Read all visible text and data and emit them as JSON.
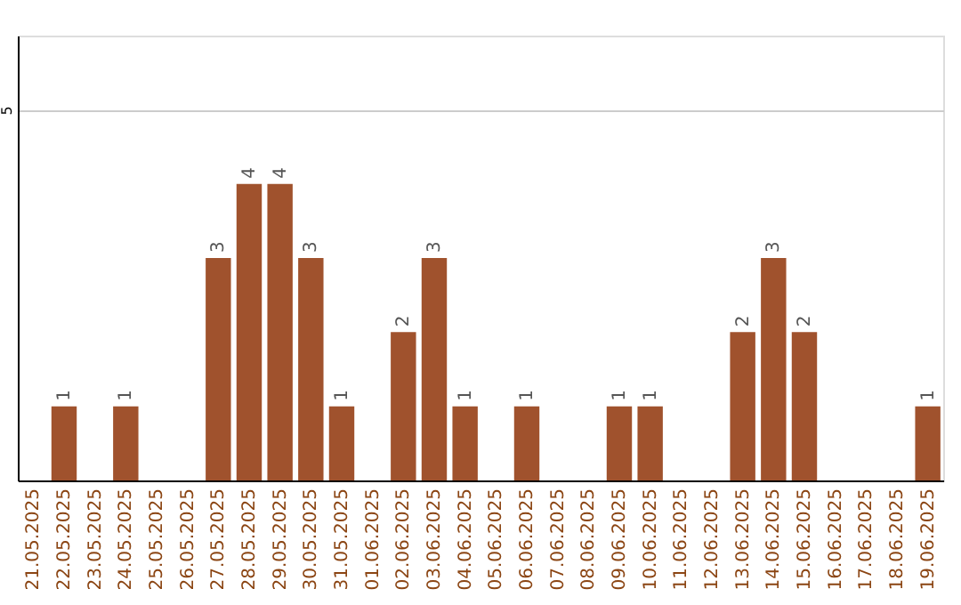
{
  "chart_data": {
    "type": "bar",
    "categories": [
      "21.05.2025",
      "22.05.2025",
      "23.05.2025",
      "24.05.2025",
      "25.05.2025",
      "26.05.2025",
      "27.05.2025",
      "28.05.2025",
      "29.05.2025",
      "30.05.2025",
      "31.05.2025",
      "01.06.2025",
      "02.06.2025",
      "03.06.2025",
      "04.06.2025",
      "05.06.2025",
      "06.06.2025",
      "07.06.2025",
      "08.06.2025",
      "09.06.2025",
      "10.06.2025",
      "11.06.2025",
      "12.06.2025",
      "13.06.2025",
      "14.06.2025",
      "15.06.2025",
      "16.06.2025",
      "17.06.2025",
      "18.06.2025",
      "19.06.2025"
    ],
    "values": [
      0,
      1,
      0,
      1,
      0,
      0,
      3,
      4,
      4,
      3,
      1,
      0,
      2,
      3,
      1,
      0,
      1,
      0,
      0,
      1,
      1,
      0,
      0,
      2,
      3,
      2,
      0,
      0,
      0,
      1
    ],
    "value_labels": [
      null,
      "1",
      null,
      "1",
      null,
      null,
      "3",
      "4",
      "4",
      "3",
      "1",
      null,
      "2",
      "3",
      "1",
      null,
      "1",
      null,
      null,
      "1",
      "1",
      null,
      null,
      "2",
      "3",
      "2",
      null,
      null,
      null,
      "1"
    ],
    "color": "#a0522d",
    "ylim": [
      0,
      6
    ],
    "yticks": [
      {
        "value": 0,
        "label": null
      },
      5
    ],
    "grid": "y"
  }
}
